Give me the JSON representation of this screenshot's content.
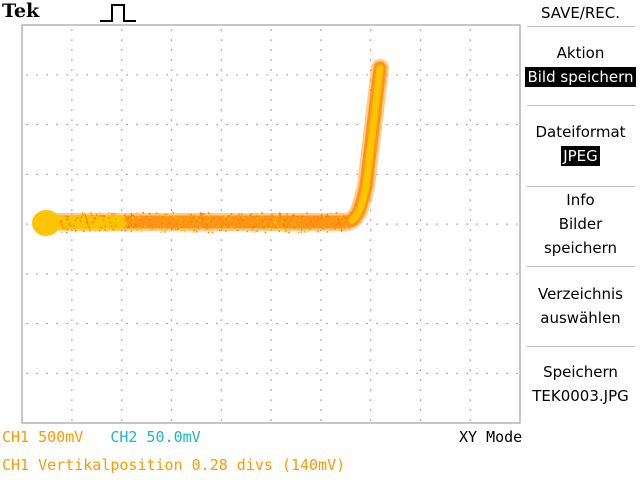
{
  "brand": "Tek",
  "menu": {
    "title": "SAVE/REC.",
    "items": [
      {
        "label_lines": [
          "Aktion"
        ],
        "value": "Bild speichern"
      },
      {
        "label_lines": [
          "Dateiformat"
        ],
        "value": "JPEG"
      },
      {
        "label_lines": [
          "Info",
          "Bilder",
          "speichern"
        ]
      },
      {
        "label_lines": [
          "Verzeichnis",
          "auswählen"
        ]
      },
      {
        "label_lines": [
          "Speichern",
          "TEK0003.JPG"
        ]
      }
    ]
  },
  "status": {
    "ch1_label": "CH1",
    "ch1_scale": "500mV",
    "ch2_label": "CH2",
    "ch2_scale": "50.0mV",
    "mode": "XY Mode",
    "message": "CH1 Vertikalposition 0.28 divs (140mV)"
  },
  "colors": {
    "ch1": "#ff9900",
    "ch2": "#1ab8c8",
    "trace_core": "#ffc400",
    "trace_edge": "#ff8a00",
    "grid": "#7a7a7a"
  }
}
